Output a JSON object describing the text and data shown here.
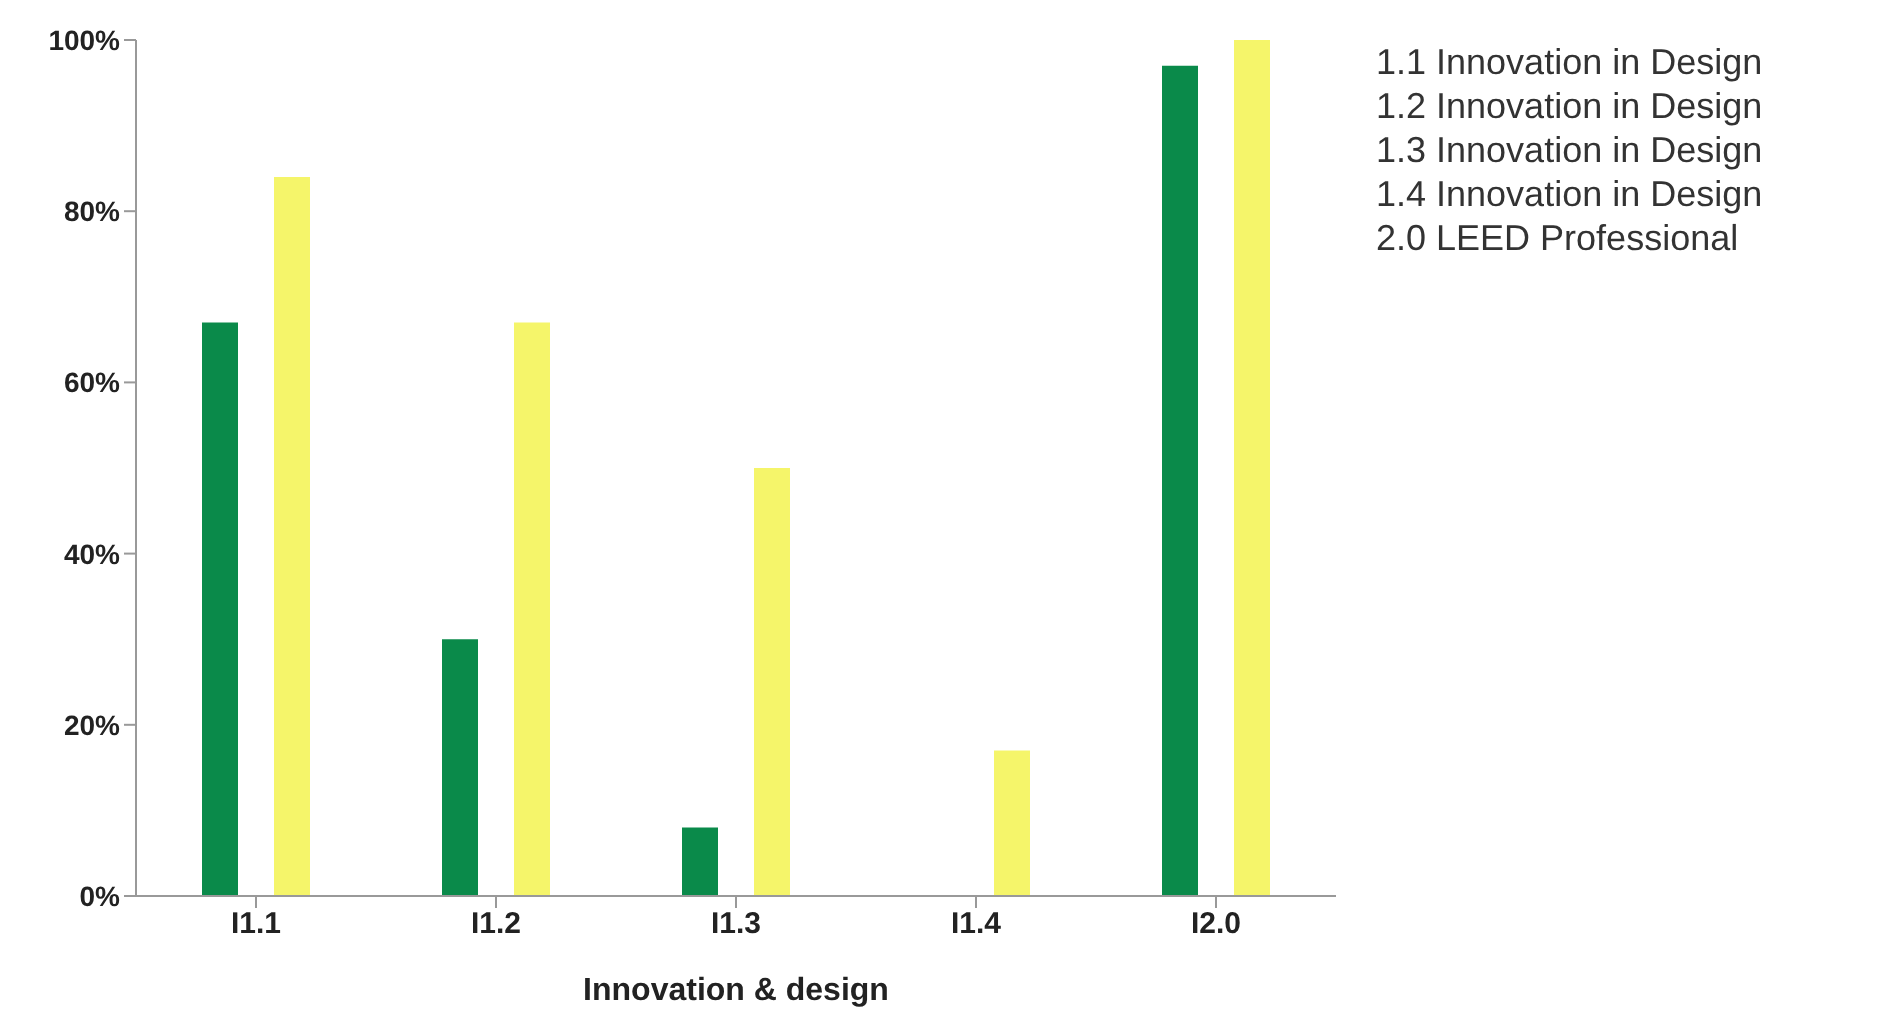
{
  "chart_data": {
    "type": "bar",
    "xlabel": "Innovation & design",
    "categories": [
      "I1.1",
      "I1.2",
      "I1.3",
      "I1.4",
      "I2.0"
    ],
    "series": [
      {
        "color": "#0a8a4a",
        "values": [
          67,
          30,
          8,
          0,
          97
        ]
      },
      {
        "color": "#f5f56a",
        "values": [
          84,
          67,
          50,
          17,
          100
        ]
      }
    ],
    "ylim": [
      0,
      100
    ],
    "yticks": [
      {
        "value": 0,
        "label": "0%"
      },
      {
        "value": 20,
        "label": "20%"
      },
      {
        "value": 40,
        "label": "40%"
      },
      {
        "value": 60,
        "label": "60%"
      },
      {
        "value": 80,
        "label": "80%"
      },
      {
        "value": 100,
        "label": "100%"
      }
    ],
    "annotations": [
      "1.1 Innovation in Design",
      "1.2 Innovation in Design",
      "1.3 Innovation in Design",
      "1.4 Innovation in Design",
      "2.0 LEED Professional"
    ]
  }
}
